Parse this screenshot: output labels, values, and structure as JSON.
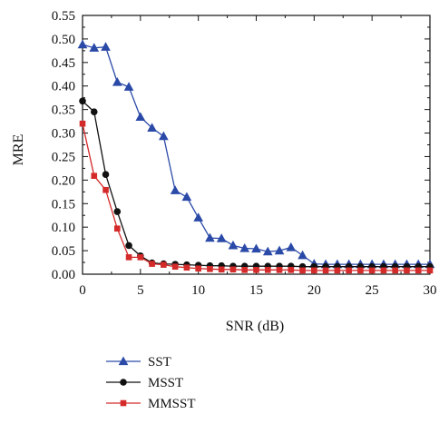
{
  "chart_data": {
    "type": "line",
    "title": "",
    "xlabel": "SNR (dB)",
    "ylabel": "MRE",
    "xlim": [
      0,
      30
    ],
    "ylim": [
      0,
      0.55
    ],
    "xticks": [
      0,
      5,
      10,
      15,
      20,
      25,
      30
    ],
    "yticks": [
      0.0,
      0.05,
      0.1,
      0.15,
      0.2,
      0.25,
      0.3,
      0.35,
      0.4,
      0.45,
      0.5,
      0.55
    ],
    "x": [
      0,
      1,
      2,
      3,
      4,
      5,
      6,
      7,
      8,
      9,
      10,
      11,
      12,
      13,
      14,
      15,
      16,
      17,
      18,
      19,
      20,
      21,
      22,
      23,
      24,
      25,
      26,
      27,
      28,
      29,
      30
    ],
    "grid": false,
    "legend_position": "below",
    "series": [
      {
        "name": "SST",
        "color": "#2b4aa8",
        "marker": "triangle",
        "values": [
          0.488,
          0.481,
          0.483,
          0.408,
          0.398,
          0.334,
          0.311,
          0.293,
          0.178,
          0.164,
          0.12,
          0.077,
          0.076,
          0.061,
          0.055,
          0.054,
          0.048,
          0.05,
          0.057,
          0.04,
          0.022,
          0.021,
          0.021,
          0.021,
          0.021,
          0.021,
          0.021,
          0.021,
          0.021,
          0.021,
          0.021
        ]
      },
      {
        "name": "MSST",
        "color": "#111111",
        "marker": "circle",
        "values": [
          0.368,
          0.345,
          0.212,
          0.133,
          0.061,
          0.039,
          0.024,
          0.022,
          0.021,
          0.02,
          0.019,
          0.018,
          0.018,
          0.017,
          0.017,
          0.017,
          0.017,
          0.017,
          0.017,
          0.016,
          0.016,
          0.016,
          0.016,
          0.016,
          0.016,
          0.016,
          0.016,
          0.016,
          0.016,
          0.016,
          0.016
        ]
      },
      {
        "name": "MMSST",
        "color": "#d42a2a",
        "marker": "square",
        "values": [
          0.32,
          0.209,
          0.179,
          0.097,
          0.036,
          0.036,
          0.022,
          0.02,
          0.016,
          0.014,
          0.012,
          0.011,
          0.01,
          0.01,
          0.009,
          0.009,
          0.009,
          0.009,
          0.009,
          0.008,
          0.008,
          0.008,
          0.008,
          0.008,
          0.008,
          0.008,
          0.008,
          0.008,
          0.008,
          0.008,
          0.008
        ]
      }
    ]
  }
}
